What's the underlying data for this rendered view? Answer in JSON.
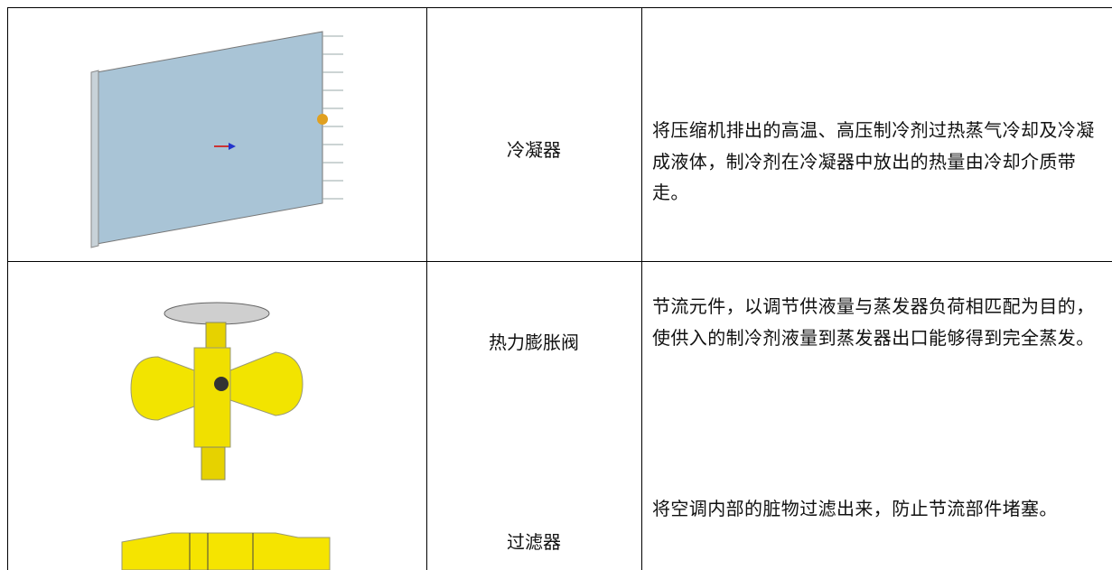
{
  "table": {
    "rows": [
      {
        "name": "冷凝器",
        "description": "将压缩机排出的高温、高压制冷剂过热蒸气冷却及冷凝成液体，制冷剂在冷凝器中放出的热量由冷却介质带走。"
      },
      {
        "name": "热力膨胀阀",
        "description": "节流元件，以调节供液量与蒸发器负荷相匹配为目的，使供入的制冷剂液量到蒸发器出口能够得到完全蒸发。"
      },
      {
        "name": "过滤器",
        "description": "将空调内部的脏物过滤出来，防止节流部件堵塞。"
      }
    ]
  }
}
